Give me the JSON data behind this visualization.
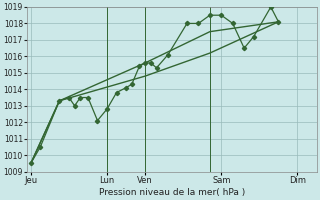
{
  "title": "",
  "xlabel": "Pression niveau de la mer( hPa )",
  "bg_color": "#cce8e8",
  "grid_color": "#99bbbb",
  "line_color": "#336633",
  "ylim": [
    1009,
    1019
  ],
  "yticks": [
    1009,
    1010,
    1011,
    1012,
    1013,
    1014,
    1015,
    1016,
    1017,
    1018,
    1019
  ],
  "day_labels": [
    "Jeu",
    "",
    "Lun",
    "Ven",
    "",
    "Sam",
    "",
    "Dim"
  ],
  "day_positions": [
    0,
    1,
    2,
    3,
    4,
    5,
    6,
    7
  ],
  "xlim": [
    -0.1,
    7.5
  ],
  "pressure_main_x": [
    0.0,
    0.25,
    0.75,
    1.0,
    1.15,
    1.3,
    1.5,
    1.75,
    2.0,
    2.25,
    2.5,
    2.65,
    2.85,
    3.0,
    3.15,
    3.3,
    3.6,
    4.1,
    4.4,
    4.7,
    5.0,
    5.3,
    5.6,
    5.85,
    6.3,
    6.5
  ],
  "pressure_main_y": [
    1009.5,
    1010.5,
    1013.3,
    1013.5,
    1013.0,
    1013.5,
    1013.5,
    1012.1,
    1012.8,
    1013.8,
    1014.1,
    1014.3,
    1015.4,
    1015.6,
    1015.6,
    1015.3,
    1016.1,
    1018.0,
    1018.0,
    1018.5,
    1018.5,
    1018.0,
    1016.5,
    1017.2,
    1019.0,
    1018.1
  ],
  "trend1_x": [
    0.0,
    0.75,
    3.0,
    4.7,
    6.5
  ],
  "trend1_y": [
    1009.5,
    1013.3,
    1015.6,
    1017.5,
    1018.1
  ],
  "trend2_x": [
    0.0,
    0.75,
    3.0,
    4.7,
    6.5
  ],
  "trend2_y": [
    1009.5,
    1013.3,
    1014.8,
    1016.2,
    1018.1
  ],
  "vline_positions": [
    2.0,
    3.0,
    4.7
  ],
  "vline_color": "#336633",
  "tick_label_positions": [
    0,
    2,
    3,
    5,
    7
  ],
  "tick_labels_shown": [
    "Jeu",
    "Lun",
    "Ven",
    "Sam",
    "Dim"
  ]
}
